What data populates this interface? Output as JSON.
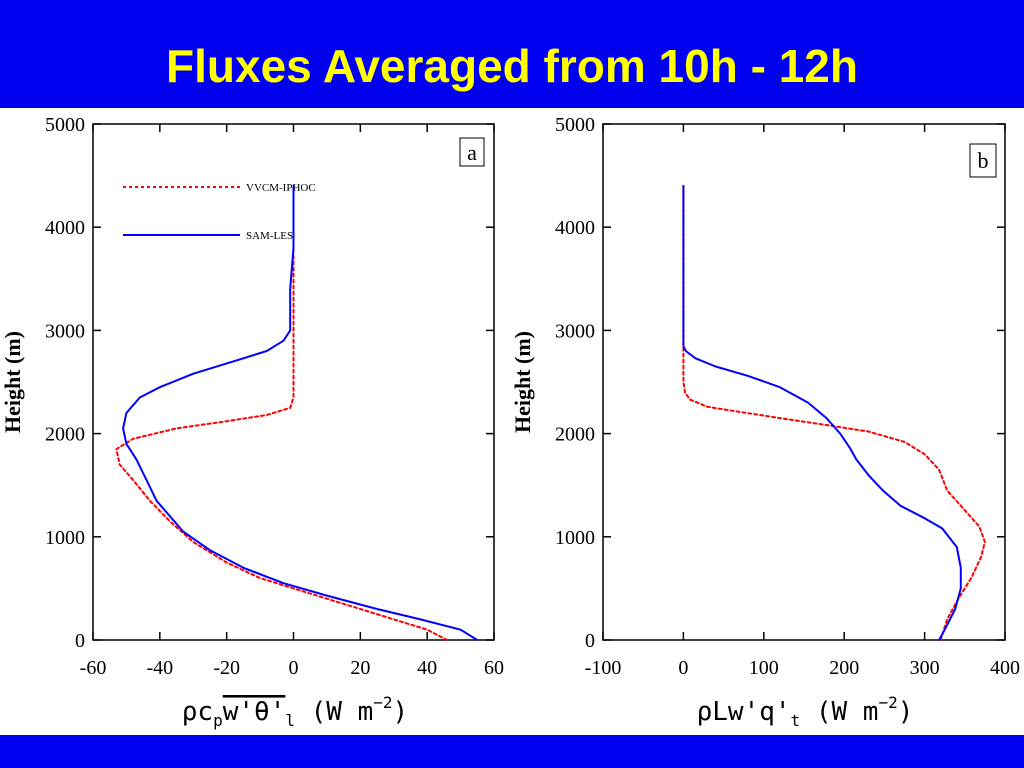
{
  "slide": {
    "title": "Fluxes Averaged from 10h - 12h"
  },
  "colors": {
    "banner": "#0000f0",
    "title": "#ffff00",
    "vvcm_iphoc": "#ff0000",
    "sam_les": "#0000ff"
  },
  "chart_data": [
    {
      "type": "line",
      "panel_label": "a",
      "ylabel": "Height (m)",
      "xlabel_parts": [
        "ρc",
        "p",
        "w'θ'",
        "l",
        " (W m",
        "−2",
        ")"
      ],
      "xlim": [
        -60,
        60
      ],
      "ylim": [
        0,
        5000
      ],
      "xticks": [
        -60,
        -40,
        -20,
        0,
        20,
        40,
        60
      ],
      "yticks": [
        0,
        1000,
        2000,
        3000,
        4000,
        5000
      ],
      "legend_position": "top-left",
      "series": [
        {
          "name": "VVCM-IPHOC",
          "style": "dotted",
          "points": [
            [
              46,
              0
            ],
            [
              40,
              100
            ],
            [
              30,
              200
            ],
            [
              20,
              300
            ],
            [
              10,
              400
            ],
            [
              0,
              500
            ],
            [
              -10,
              600
            ],
            [
              -20,
              750
            ],
            [
              -30,
              950
            ],
            [
              -37,
              1150
            ],
            [
              -43,
              1350
            ],
            [
              -48,
              1550
            ],
            [
              -52,
              1700
            ],
            [
              -53,
              1850
            ],
            [
              -48,
              1950
            ],
            [
              -35,
              2050
            ],
            [
              -20,
              2120
            ],
            [
              -8,
              2180
            ],
            [
              -1,
              2250
            ],
            [
              0,
              2350
            ],
            [
              0,
              2500
            ],
            [
              0,
              2600
            ],
            [
              0,
              3000
            ],
            [
              0,
              3500
            ],
            [
              0,
              4000
            ],
            [
              0,
              4400
            ]
          ]
        },
        {
          "name": "SAM-LES",
          "style": "solid",
          "points": [
            [
              55,
              0
            ],
            [
              50,
              100
            ],
            [
              38,
              200
            ],
            [
              25,
              300
            ],
            [
              10,
              430
            ],
            [
              -3,
              550
            ],
            [
              -15,
              700
            ],
            [
              -25,
              870
            ],
            [
              -33,
              1050
            ],
            [
              -37,
              1200
            ],
            [
              -41,
              1350
            ],
            [
              -44,
              1550
            ],
            [
              -47,
              1750
            ],
            [
              -50,
              1900
            ],
            [
              -51,
              2050
            ],
            [
              -50,
              2200
            ],
            [
              -46,
              2350
            ],
            [
              -40,
              2450
            ],
            [
              -30,
              2580
            ],
            [
              -18,
              2700
            ],
            [
              -8,
              2800
            ],
            [
              -3,
              2900
            ],
            [
              -1,
              3000
            ],
            [
              -1,
              3200
            ],
            [
              -1,
              3400
            ],
            [
              -0.5,
              3600
            ],
            [
              0,
              3800
            ],
            [
              0,
              4000
            ],
            [
              0,
              4400
            ]
          ]
        }
      ]
    },
    {
      "type": "line",
      "panel_label": "b",
      "ylabel": "Height (m)",
      "xlabel_parts": [
        "ρLw'q'",
        "t",
        " (W m",
        "−2",
        ")"
      ],
      "xlim": [
        -100,
        400
      ],
      "ylim": [
        0,
        5000
      ],
      "xticks": [
        -100,
        0,
        100,
        200,
        300,
        400
      ],
      "yticks": [
        0,
        1000,
        2000,
        3000,
        4000,
        5000
      ],
      "series": [
        {
          "name": "VVCM-IPHOC",
          "style": "dotted",
          "points": [
            [
              320,
              0
            ],
            [
              328,
              200
            ],
            [
              342,
              400
            ],
            [
              358,
              600
            ],
            [
              370,
              800
            ],
            [
              375,
              950
            ],
            [
              368,
              1100
            ],
            [
              345,
              1300
            ],
            [
              328,
              1450
            ],
            [
              318,
              1650
            ],
            [
              300,
              1800
            ],
            [
              275,
              1920
            ],
            [
              230,
              2020
            ],
            [
              180,
              2080
            ],
            [
              120,
              2150
            ],
            [
              70,
              2210
            ],
            [
              30,
              2260
            ],
            [
              8,
              2330
            ],
            [
              2,
              2400
            ],
            [
              0,
              2500
            ],
            [
              0,
              2600
            ],
            [
              0,
              3000
            ],
            [
              0,
              3500
            ],
            [
              0,
              4000
            ],
            [
              0,
              4400
            ]
          ]
        },
        {
          "name": "SAM-LES",
          "style": "solid",
          "points": [
            [
              318,
              0
            ],
            [
              325,
              100
            ],
            [
              338,
              300
            ],
            [
              345,
              500
            ],
            [
              345,
              700
            ],
            [
              340,
              900
            ],
            [
              322,
              1080
            ],
            [
              300,
              1180
            ],
            [
              270,
              1300
            ],
            [
              248,
              1450
            ],
            [
              230,
              1600
            ],
            [
              215,
              1750
            ],
            [
              208,
              1850
            ],
            [
              195,
              2000
            ],
            [
              178,
              2150
            ],
            [
              155,
              2300
            ],
            [
              120,
              2450
            ],
            [
              80,
              2560
            ],
            [
              40,
              2650
            ],
            [
              15,
              2730
            ],
            [
              3,
              2800
            ],
            [
              0,
              2850
            ],
            [
              0,
              3000
            ],
            [
              0,
              3500
            ],
            [
              0,
              4000
            ],
            [
              0,
              4400
            ]
          ]
        }
      ]
    }
  ]
}
